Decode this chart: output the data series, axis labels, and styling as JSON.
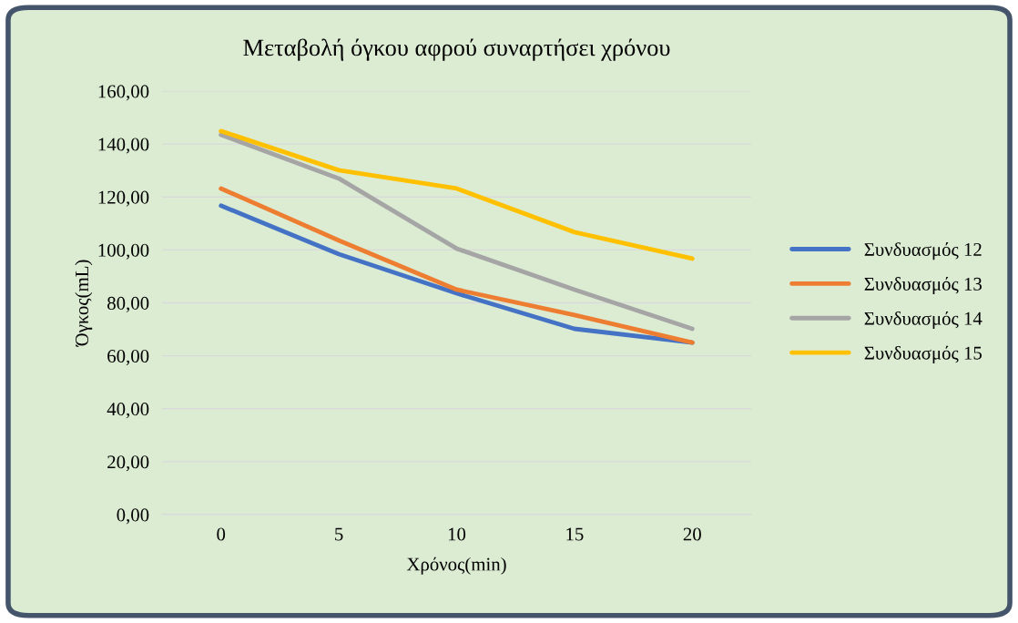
{
  "chart_data": {
    "type": "line",
    "title": "Μεταβολή όγκου αφρού συναρτήσει χρόνου",
    "xlabel": "Χρόνος(min)",
    "ylabel": "Όγκος(mL)",
    "categories": [
      "0",
      "5",
      "10",
      "15",
      "20"
    ],
    "series": [
      {
        "name": "Συνδυασμός 12",
        "color": "#4472c4",
        "values": [
          116.7,
          98.4,
          83.6,
          70.2,
          65.0
        ]
      },
      {
        "name": "Συνδυασμός 13",
        "color": "#ed7d31",
        "values": [
          123.2,
          103.6,
          85.0,
          75.4,
          65.0
        ]
      },
      {
        "name": "Συνδυασμός 14",
        "color": "#a5a5a5",
        "values": [
          143.5,
          127.0,
          100.5,
          85.0,
          70.2
        ]
      },
      {
        "name": "Συνδυασμός 15",
        "color": "#ffc000",
        "values": [
          144.9,
          130.1,
          123.2,
          106.7,
          96.7
        ]
      }
    ],
    "ylim": [
      0,
      160
    ],
    "yticks": [
      {
        "value": 0,
        "label": "0,00"
      },
      {
        "value": 20,
        "label": "20,00"
      },
      {
        "value": 40,
        "label": "40,00"
      },
      {
        "value": 60,
        "label": "60,00"
      },
      {
        "value": 80,
        "label": "80,00"
      },
      {
        "value": 100,
        "label": "100,00"
      },
      {
        "value": 120,
        "label": "120,00"
      },
      {
        "value": 140,
        "label": "140,00"
      },
      {
        "value": 160,
        "label": "160,00"
      }
    ],
    "grid": "y",
    "legend": "right",
    "marker": "none",
    "line_style": "solid"
  }
}
